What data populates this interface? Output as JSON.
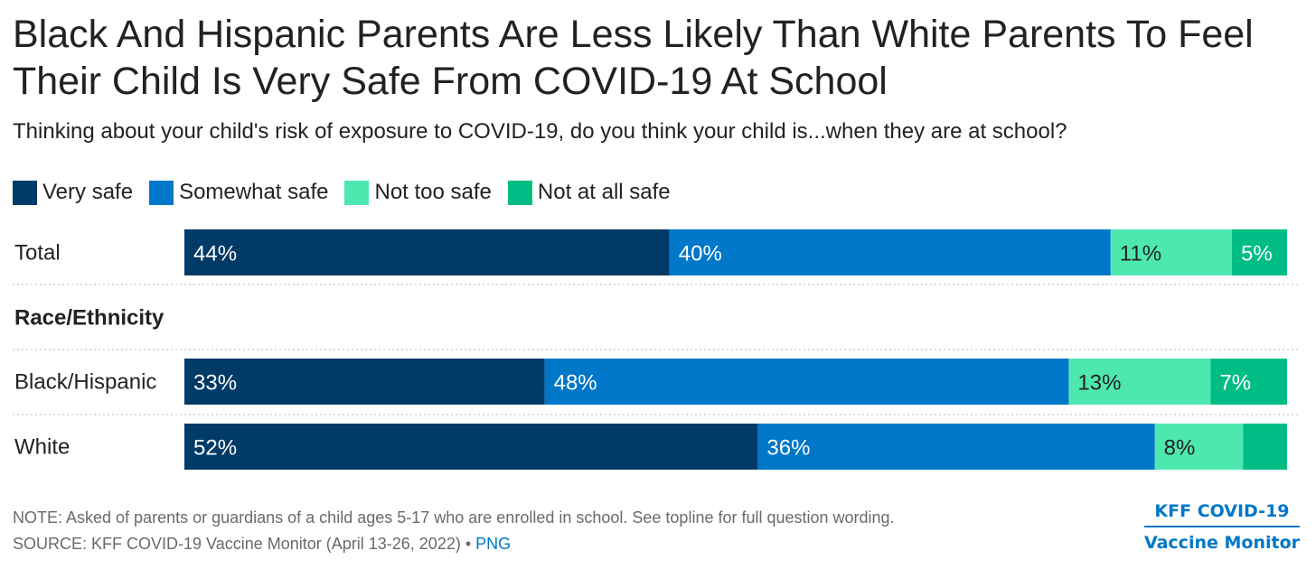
{
  "title": "Black And Hispanic Parents Are Less Likely Than White Parents To Feel Their Child Is Very Safe From COVID-19 At School",
  "subtitle": "Thinking about your child's risk of exposure to COVID-19, do you think your child is...when they are at school?",
  "note": "NOTE: Asked of parents or guardians of a child ages 5-17 who are enrolled in school. See topline for full question wording.",
  "source": {
    "text": "SOURCE: KFF COVID-19 Vaccine Monitor (April 13-26, 2022) • ",
    "link": "PNG"
  },
  "logo": {
    "line1": "KFF COVID-19",
    "line2": "Vaccine Monitor"
  },
  "colors": {
    "very_safe": "#003a66",
    "somewhat_safe": "#0077c8",
    "not_too_safe": "#4de8b0",
    "not_at_all_safe": "#00bd85",
    "text_dark": "#222222",
    "text_light": "#ffffff",
    "gridline": "#d0d0d0"
  },
  "chart_data": {
    "type": "bar",
    "orientation": "horizontal",
    "stacked": true,
    "series": [
      {
        "name": "Very safe",
        "color": "#003a66"
      },
      {
        "name": "Somewhat safe",
        "color": "#0077c8"
      },
      {
        "name": "Not too safe",
        "color": "#4de8b0"
      },
      {
        "name": "Not at all safe",
        "color": "#00bd85"
      }
    ],
    "rows": [
      {
        "label": "Total",
        "kind": "bar",
        "values": [
          44,
          40,
          11,
          5
        ],
        "labels": [
          "44%",
          "40%",
          "11%",
          "5%"
        ]
      },
      {
        "label": "Race/Ethnicity",
        "kind": "header"
      },
      {
        "label": "Black/Hispanic",
        "kind": "bar",
        "values": [
          33,
          48,
          13,
          7
        ],
        "labels": [
          "33%",
          "48%",
          "13%",
          "7%"
        ]
      },
      {
        "label": "White",
        "kind": "bar",
        "values": [
          52,
          36,
          8,
          4
        ],
        "labels": [
          "52%",
          "36%",
          "8%",
          ""
        ]
      }
    ],
    "legend_position": "top-left",
    "grid": false
  }
}
